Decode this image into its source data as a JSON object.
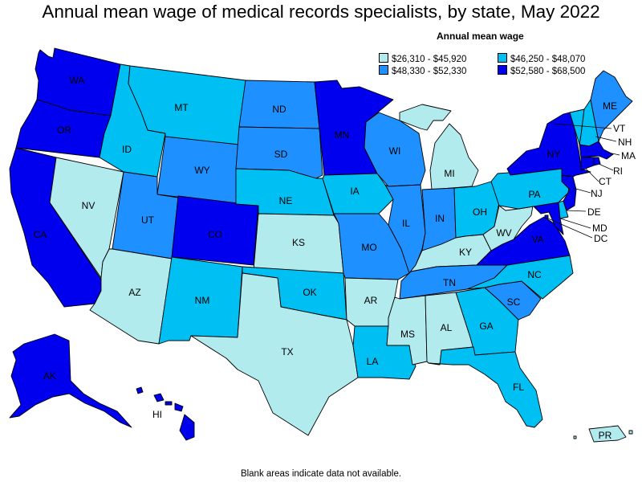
{
  "title": "Annual mean wage of medical records specialists, by state, May 2022",
  "legend": {
    "title": "Annual mean wage",
    "items": [
      {
        "label": "$26,310 - $45,920",
        "color": "#b2ebee"
      },
      {
        "label": "$46,250 - $48,070",
        "color": "#00bff3"
      },
      {
        "label": "$48,330 - $52,330",
        "color": "#1e90ff"
      },
      {
        "label": "$52,580 - $68,500",
        "color": "#0000ee"
      }
    ]
  },
  "footnote": "Blank areas indicate data not available.",
  "states": {
    "WA": {
      "label": "WA",
      "tier": 3
    },
    "OR": {
      "label": "OR",
      "tier": 3
    },
    "CA": {
      "label": "CA",
      "tier": 3
    },
    "NV": {
      "label": "NV",
      "tier": 0
    },
    "ID": {
      "label": "ID",
      "tier": 1
    },
    "MT": {
      "label": "MT",
      "tier": 1
    },
    "WY": {
      "label": "WY",
      "tier": 2
    },
    "UT": {
      "label": "UT",
      "tier": 2
    },
    "AZ": {
      "label": "AZ",
      "tier": 0
    },
    "CO": {
      "label": "CO",
      "tier": 3
    },
    "NM": {
      "label": "NM",
      "tier": 1
    },
    "ND": {
      "label": "ND",
      "tier": 2
    },
    "SD": {
      "label": "SD",
      "tier": 2
    },
    "NE": {
      "label": "NE",
      "tier": 1
    },
    "KS": {
      "label": "KS",
      "tier": 0
    },
    "OK": {
      "label": "OK",
      "tier": 1
    },
    "TX": {
      "label": "TX",
      "tier": 0
    },
    "MN": {
      "label": "MN",
      "tier": 3
    },
    "IA": {
      "label": "IA",
      "tier": 1
    },
    "MO": {
      "label": "MO",
      "tier": 2
    },
    "AR": {
      "label": "AR",
      "tier": 0
    },
    "LA": {
      "label": "LA",
      "tier": 1
    },
    "WI": {
      "label": "WI",
      "tier": 2
    },
    "IL": {
      "label": "IL",
      "tier": 2
    },
    "MI": {
      "label": "MI",
      "tier": 0
    },
    "IN": {
      "label": "IN",
      "tier": 2
    },
    "OH": {
      "label": "OH",
      "tier": 1
    },
    "KY": {
      "label": "KY",
      "tier": 0
    },
    "TN": {
      "label": "TN",
      "tier": 2
    },
    "MS": {
      "label": "MS",
      "tier": 0
    },
    "AL": {
      "label": "AL",
      "tier": 0
    },
    "GA": {
      "label": "GA",
      "tier": 1
    },
    "FL": {
      "label": "FL",
      "tier": 1
    },
    "SC": {
      "label": "SC",
      "tier": 2
    },
    "NC": {
      "label": "NC",
      "tier": 1
    },
    "VA": {
      "label": "VA",
      "tier": 3
    },
    "WV": {
      "label": "WV",
      "tier": 0
    },
    "PA": {
      "label": "PA",
      "tier": 1
    },
    "NY": {
      "label": "NY",
      "tier": 3
    },
    "VT": {
      "label": "VT",
      "tier": 1
    },
    "NH": {
      "label": "NH",
      "tier": 1
    },
    "ME": {
      "label": "ME",
      "tier": 2
    },
    "MA": {
      "label": "MA",
      "tier": 3
    },
    "RI": {
      "label": "RI",
      "tier": 3
    },
    "CT": {
      "label": "CT",
      "tier": 3
    },
    "NJ": {
      "label": "NJ",
      "tier": 3
    },
    "DE": {
      "label": "DE",
      "tier": 1
    },
    "MD": {
      "label": "MD",
      "tier": 3
    },
    "DC": {
      "label": "DC",
      "tier": 3
    },
    "AK": {
      "label": "AK",
      "tier": 3
    },
    "HI": {
      "label": "HI",
      "tier": 3
    },
    "PR": {
      "label": "PR",
      "tier": 0
    }
  }
}
